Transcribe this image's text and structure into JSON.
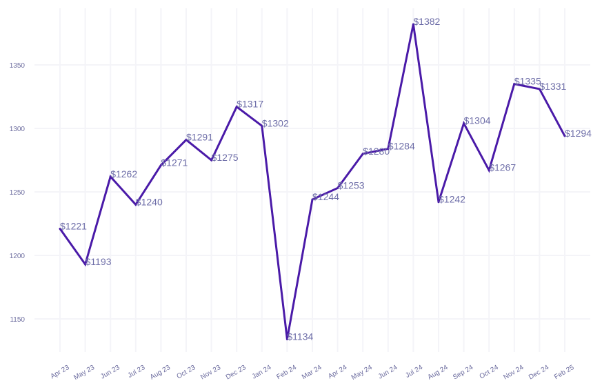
{
  "chart_data": {
    "type": "line",
    "title": "",
    "xlabel": "",
    "ylabel": "",
    "categories": [
      "Apr 23",
      "May 23",
      "Jun 23",
      "Jul 23",
      "Aug 23",
      "Oct 23",
      "Nov 23",
      "Dec 23",
      "Jan 24",
      "Feb 24",
      "Mar 24",
      "Apr 24",
      "May 24",
      "Jun 24",
      "Jul 24",
      "Aug 24",
      "Sep 24",
      "Oct 24",
      "Nov 24",
      "Dec 24",
      "Feb 25"
    ],
    "series": [
      {
        "values": [
          1221,
          1193,
          1262,
          1240,
          1271,
          1291,
          1275,
          1317,
          1302,
          1134,
          1244,
          1253,
          1280,
          1284,
          1382,
          1242,
          1304,
          1267,
          1335,
          1331,
          1294
        ],
        "color": "#4a1aa8"
      }
    ],
    "data_labels": [
      "$1221",
      "$1193",
      "$1262",
      "$1240",
      "$1271",
      "$1291",
      "$1275",
      "$1317",
      "$1302",
      "$1134",
      "$1244",
      "$1253",
      "$1280",
      "$1284",
      "$1382",
      "$1242",
      "$1304",
      "$1267",
      "$1335",
      "$1331",
      "$1294"
    ],
    "yticks": [
      1150,
      1200,
      1250,
      1300,
      1350
    ],
    "ylim": [
      1124,
      1389
    ],
    "grid": true,
    "legend": "none"
  }
}
